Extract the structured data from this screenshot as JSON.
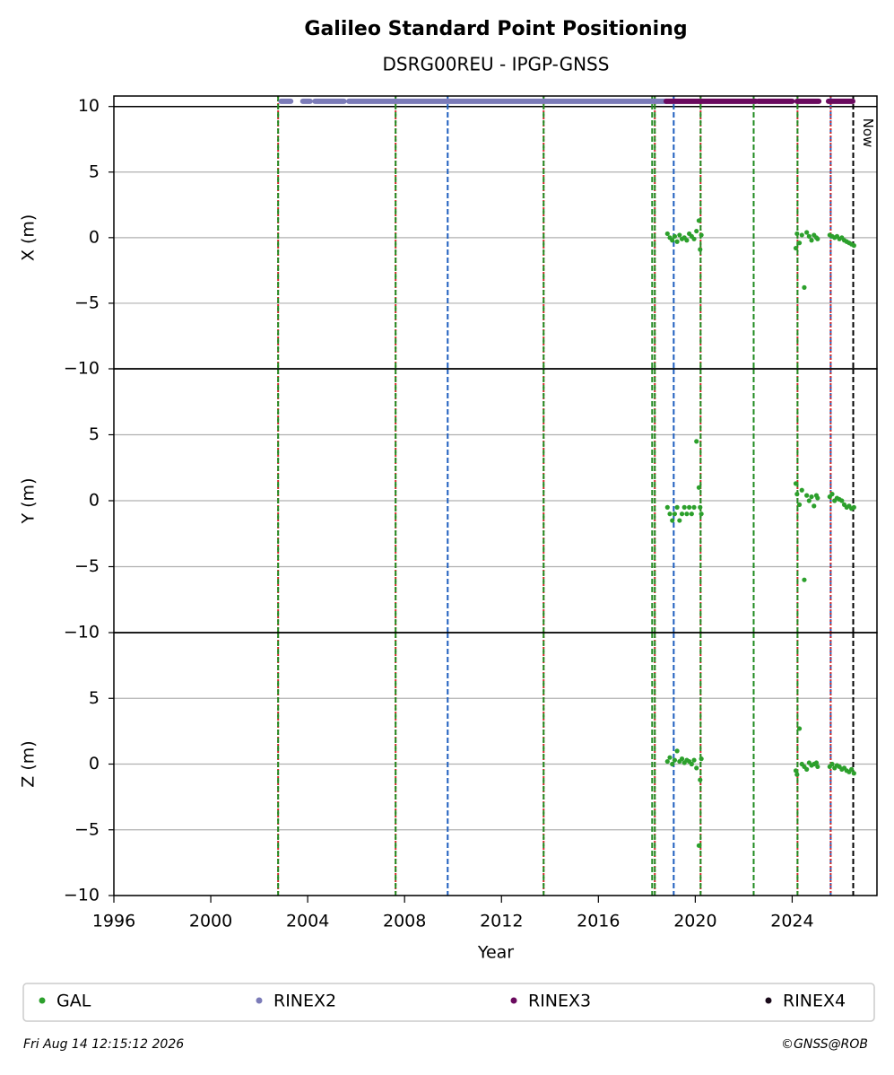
{
  "chart_data": {
    "type": "scatter",
    "title": "Galileo Standard Point Positioning",
    "subtitle": "DSRG00REU - IPGP-GNSS",
    "xlabel": "Year",
    "xlim": [
      1996,
      2027.5
    ],
    "xticks": [
      1996,
      2000,
      2004,
      2008,
      2012,
      2016,
      2020,
      2024
    ],
    "grid": true,
    "x": [
      2018.85,
      2018.95,
      2019.05,
      2019.15,
      2019.25,
      2019.35,
      2019.45,
      2019.55,
      2019.65,
      2019.75,
      2019.85,
      2019.95,
      2020.05,
      2020.15,
      2020.2,
      2020.25,
      2024.15,
      2024.2,
      2024.3,
      2024.4,
      2024.5,
      2024.6,
      2024.7,
      2024.8,
      2024.9,
      2025.0,
      2025.05,
      2025.55,
      2025.65,
      2025.75,
      2025.85,
      2025.95,
      2026.05,
      2026.15,
      2026.25,
      2026.35,
      2026.45,
      2026.55
    ],
    "series_name": "GAL",
    "color": "#2ca02c",
    "panels": [
      {
        "ylabel": "X (m)",
        "ylim": [
          -10,
          10.8
        ],
        "ref_line": 10,
        "yticks": [
          {
            "value": -10,
            "label": "−10"
          },
          {
            "value": -5,
            "label": "−5"
          },
          0,
          5,
          10
        ],
        "values": [
          0.3,
          0.0,
          -0.2,
          0.1,
          -0.3,
          0.2,
          -0.1,
          0.0,
          -0.2,
          0.3,
          0.1,
          -0.1,
          0.5,
          1.3,
          -0.9,
          0.2,
          -0.8,
          0.3,
          -0.4,
          0.2,
          -3.8,
          0.4,
          0.1,
          -0.2,
          0.2,
          0.0,
          -0.1,
          0.2,
          0.1,
          0.0,
          0.1,
          -0.1,
          0.0,
          -0.2,
          -0.3,
          -0.4,
          -0.5,
          -0.6
        ]
      },
      {
        "ylabel": "Y (m)",
        "ylim": [
          -10,
          10
        ],
        "yticks": [
          {
            "value": -10,
            "label": "−10"
          },
          {
            "value": -5,
            "label": "−5"
          },
          0,
          5
        ],
        "values": [
          -0.5,
          -1.0,
          -1.5,
          -1.0,
          -0.5,
          -1.5,
          -1.0,
          -0.5,
          -1.0,
          -0.5,
          -1.0,
          -0.5,
          4.5,
          1.0,
          -0.5,
          -1.0,
          1.3,
          0.5,
          -0.3,
          0.8,
          -6.0,
          0.4,
          0.0,
          0.3,
          -0.4,
          0.4,
          0.2,
          0.3,
          0.5,
          0.0,
          0.2,
          0.1,
          0.0,
          -0.3,
          -0.5,
          -0.4,
          -0.6,
          -0.5
        ]
      },
      {
        "ylabel": "Z (m)",
        "ylim": [
          -10,
          10
        ],
        "yticks": [
          {
            "value": -10,
            "label": "−10"
          },
          {
            "value": -5,
            "label": "−5"
          },
          0,
          5
        ],
        "values": [
          0.2,
          0.5,
          0.0,
          0.3,
          1.0,
          0.2,
          0.4,
          0.1,
          0.3,
          0.2,
          0.0,
          0.3,
          -0.3,
          -6.2,
          -1.2,
          0.4,
          -0.5,
          -0.8,
          2.7,
          0.0,
          -0.2,
          -0.4,
          0.1,
          -0.1,
          0.0,
          0.1,
          -0.2,
          -0.2,
          0.0,
          -0.3,
          -0.1,
          -0.2,
          -0.4,
          -0.3,
          -0.5,
          -0.6,
          -0.4,
          -0.7
        ]
      }
    ],
    "rinex": [
      {
        "name": "RINEX2",
        "color": "#7b7bb8",
        "y": 10.4,
        "spans": [
          [
            2002.9,
            2003.3
          ],
          [
            2003.8,
            2004.1
          ],
          [
            2004.3,
            2005.5
          ],
          [
            2005.7,
            2018.8
          ]
        ]
      },
      {
        "name": "RINEX3",
        "color": "#6a0a5e",
        "y": 10.4,
        "spans": [
          [
            2018.8,
            2022.5
          ],
          [
            2022.6,
            2024.0
          ],
          [
            2024.2,
            2025.1
          ],
          [
            2025.5,
            2026.5
          ]
        ]
      },
      {
        "name": "RINEX4",
        "color": "#1a0a1a",
        "y": 10.4,
        "spans": []
      }
    ],
    "vlines": [
      {
        "x": 2002.78,
        "color": "#d62728",
        "dash": "2,2"
      },
      {
        "x": 2002.78,
        "color": "#228b22",
        "dash": "6,3"
      },
      {
        "x": 2007.63,
        "color": "#d62728",
        "dash": "2,2"
      },
      {
        "x": 2007.63,
        "color": "#228b22",
        "dash": "6,3"
      },
      {
        "x": 2009.78,
        "color": "#1f5fbf",
        "dash": "6,3"
      },
      {
        "x": 2013.74,
        "color": "#d62728",
        "dash": "2,2"
      },
      {
        "x": 2013.74,
        "color": "#228b22",
        "dash": "6,3"
      },
      {
        "x": 2018.22,
        "color": "#228b22",
        "dash": "6,3"
      },
      {
        "x": 2018.33,
        "color": "#d62728",
        "dash": "2,2"
      },
      {
        "x": 2018.33,
        "color": "#228b22",
        "dash": "6,3"
      },
      {
        "x": 2019.11,
        "color": "#1f5fbf",
        "dash": "6,3"
      },
      {
        "x": 2020.22,
        "color": "#d62728",
        "dash": "2,2"
      },
      {
        "x": 2020.22,
        "color": "#228b22",
        "dash": "6,3"
      },
      {
        "x": 2022.41,
        "color": "#228b22",
        "dash": "6,3"
      },
      {
        "x": 2024.22,
        "color": "#d62728",
        "dash": "2,2"
      },
      {
        "x": 2024.22,
        "color": "#228b22",
        "dash": "6,3"
      },
      {
        "x": 2025.59,
        "color": "#1f5fbf",
        "dash": "6,3"
      },
      {
        "x": 2025.59,
        "color": "#d62728",
        "dash": "2,2"
      },
      {
        "x": 2026.52,
        "color": "#000000",
        "dash": "6,3"
      }
    ],
    "now_label": "Now",
    "now_x": 2026.52,
    "footer_left": "Fri Aug 14 12:15:12 2026",
    "footer_right": "©GNSS@ROB"
  }
}
